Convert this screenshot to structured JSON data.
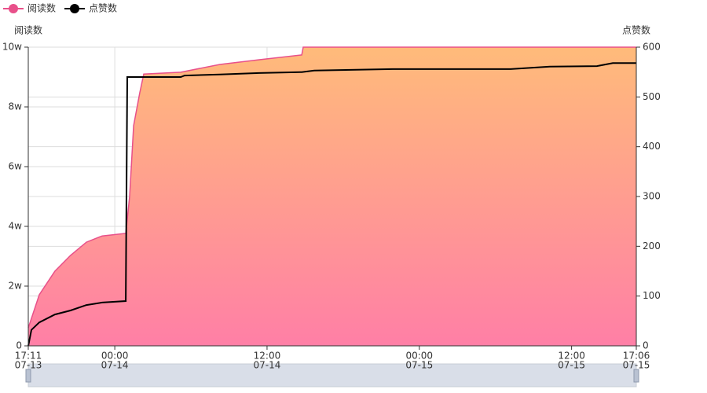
{
  "chart_data": {
    "type": "line",
    "legend": "top-left",
    "grid": true,
    "y_label": "阅读数",
    "y2_label": "点赞数",
    "xlim": [
      "07-13 17:11",
      "07-15 17:06"
    ],
    "xticks": [
      {
        "value": "07-13 17:11",
        "label": [
          "17:11",
          "07-13"
        ]
      },
      {
        "value": "07-14 00:00",
        "label": [
          "00:00",
          "07-14"
        ]
      },
      {
        "value": "07-14 12:00",
        "label": [
          "12:00",
          "07-14"
        ]
      },
      {
        "value": "07-15 00:00",
        "label": [
          "00:00",
          "07-15"
        ]
      },
      {
        "value": "07-15 12:00",
        "label": [
          "12:00",
          "07-15"
        ]
      },
      {
        "value": "07-15 17:06",
        "label": [
          "17:06",
          "07-15"
        ]
      }
    ],
    "ylim": [
      0,
      100000
    ],
    "yticks": [
      0,
      {
        "value": 20000,
        "label": "2w"
      },
      {
        "value": 40000,
        "label": "4w"
      },
      {
        "value": 60000,
        "label": "6w"
      },
      {
        "value": 80000,
        "label": "8w"
      },
      {
        "value": 100000,
        "label": "10w"
      }
    ],
    "y2lim": [
      0,
      600
    ],
    "y2ticks": [
      0,
      100,
      200,
      300,
      400,
      500,
      600
    ],
    "series": [
      {
        "name": "阅读数",
        "color": "#e8508a",
        "area": true,
        "x": [
          "07-13 17:11",
          "07-13 18:03",
          "07-13 19:17",
          "07-13 20:31",
          "07-13 21:46",
          "07-13 23:00",
          "07-14 00:44",
          "07-14 00:52",
          "07-14 01:10",
          "07-14 01:29",
          "07-14 01:58",
          "07-14 02:17",
          "07-14 05:12",
          "07-14 08:17",
          "07-14 11:23",
          "07-14 14:44",
          "07-14 14:51",
          "07-15 17:06"
        ],
        "values": [
          6000,
          17100,
          25000,
          30300,
          34700,
          36800,
          37600,
          37600,
          50000,
          73700,
          84700,
          91000,
          91600,
          94200,
          95800,
          97400,
          100000,
          100000
        ]
      },
      {
        "name": "点赞数",
        "color": "#000000",
        "axis": "y2",
        "x": [
          "07-13 17:11",
          "07-13 17:26",
          "07-13 18:03",
          "07-13 19:17",
          "07-13 20:31",
          "07-13 21:46",
          "07-13 23:00",
          "07-14 00:52",
          "07-14 00:59",
          "07-14 05:12",
          "07-14 05:30",
          "07-14 08:17",
          "07-14 11:23",
          "07-14 14:44",
          "07-14 15:43",
          "07-14 21:54",
          "07-15 07:12",
          "07-15 10:17",
          "07-15 14:00",
          "07-15 15:15",
          "07-15 17:06"
        ],
        "values": [
          0,
          32,
          47,
          63,
          71,
          82,
          87,
          90,
          540,
          540,
          543,
          545,
          548,
          550,
          553,
          556,
          556,
          561,
          562,
          568,
          568
        ]
      }
    ]
  }
}
